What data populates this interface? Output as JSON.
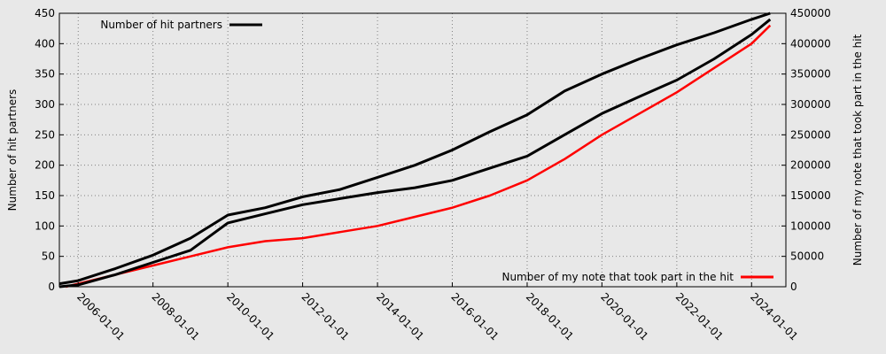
{
  "chart_data": {
    "type": "line",
    "xlabel": "",
    "ylabel_left": "Number of hit partners",
    "ylabel_right": "Number of my note that took part in the hit",
    "x_range": [
      "2005-07-01",
      "2024-12-01"
    ],
    "ylim_left": [
      0,
      450
    ],
    "ylim_right": [
      0,
      450000
    ],
    "x_ticks": [
      "2006-01-01",
      "2008-01-01",
      "2010-01-01",
      "2012-01-01",
      "2014-01-01",
      "2016-01-01",
      "2018-01-01",
      "2020-01-01",
      "2022-01-01",
      "2024-01-01"
    ],
    "y_ticks_left": [
      0,
      50,
      100,
      150,
      200,
      250,
      300,
      350,
      400,
      450
    ],
    "y_ticks_right": [
      0,
      50000,
      100000,
      150000,
      200000,
      250000,
      300000,
      350000,
      400000,
      450000
    ],
    "grid": true,
    "legend": [
      {
        "label": "Number of hit partners",
        "position": "top-left",
        "color": "#000000"
      },
      {
        "label": "Number of my note that took part in the hit",
        "position": "bottom-right",
        "color": "#ff0000"
      }
    ],
    "series": [
      {
        "axis": "left",
        "color": "#000000",
        "x": [
          "2005-07-01",
          "2006-01-01",
          "2007-01-01",
          "2008-01-01",
          "2009-01-01",
          "2010-01-01",
          "2011-01-01",
          "2012-01-01",
          "2013-01-01",
          "2014-01-01",
          "2015-01-01",
          "2016-01-01",
          "2017-01-01",
          "2018-01-01",
          "2019-01-01",
          "2020-01-01",
          "2021-01-01",
          "2022-01-01",
          "2023-01-01",
          "2024-01-01",
          "2024-07-01"
        ],
        "values": [
          5,
          10,
          30,
          52,
          80,
          118,
          130,
          148,
          160,
          180,
          200,
          225,
          255,
          283,
          322,
          350,
          375,
          398,
          418,
          440,
          450
        ]
      },
      {
        "axis": "left",
        "color": "#000000",
        "x": [
          "2005-07-01",
          "2006-01-01",
          "2007-01-01",
          "2008-01-01",
          "2009-01-01",
          "2010-01-01",
          "2011-01-01",
          "2012-01-01",
          "2013-01-01",
          "2014-01-01",
          "2015-01-01",
          "2016-01-01",
          "2017-01-01",
          "2018-01-01",
          "2019-01-01",
          "2020-01-01",
          "2021-01-01",
          "2022-01-01",
          "2023-01-01",
          "2024-01-01",
          "2024-07-01"
        ],
        "values": [
          0,
          3,
          20,
          40,
          60,
          105,
          120,
          135,
          145,
          155,
          163,
          175,
          195,
          215,
          250,
          285,
          313,
          340,
          375,
          415,
          440
        ]
      },
      {
        "axis": "right",
        "color": "#ff0000",
        "x": [
          "2005-09-01",
          "2006-01-01",
          "2007-01-01",
          "2008-01-01",
          "2009-01-01",
          "2010-01-01",
          "2011-01-01",
          "2012-01-01",
          "2013-01-01",
          "2014-01-01",
          "2015-01-01",
          "2016-01-01",
          "2017-01-01",
          "2018-01-01",
          "2019-01-01",
          "2020-01-01",
          "2021-01-01",
          "2022-01-01",
          "2023-01-01",
          "2024-01-01",
          "2024-07-01"
        ],
        "values": [
          0,
          5000,
          20000,
          35000,
          50000,
          65000,
          75000,
          80000,
          90000,
          100000,
          115000,
          130000,
          150000,
          175000,
          210000,
          250000,
          285000,
          320000,
          360000,
          400000,
          430000
        ]
      }
    ]
  }
}
